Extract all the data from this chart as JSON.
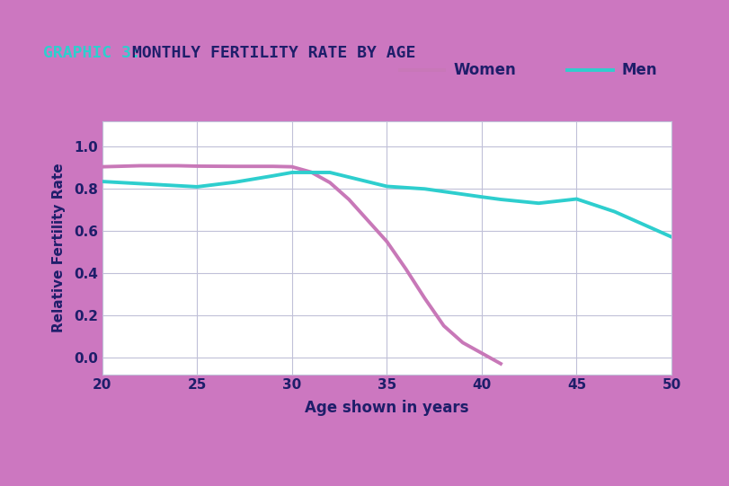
{
  "title_graphic": "GRAPHIC 3:",
  "title_main": " MONTHLY FERTILITY RATE BY AGE",
  "xlabel": "Age shown in years",
  "ylabel": "Relative Fertility Rate",
  "xlim": [
    20,
    50
  ],
  "ylim": [
    -0.08,
    1.12
  ],
  "xticks": [
    20,
    25,
    30,
    35,
    40,
    45,
    50
  ],
  "yticks": [
    0,
    0.2,
    0.4,
    0.6,
    0.8,
    1.0
  ],
  "women_x": [
    20,
    22,
    24,
    25,
    27,
    28,
    29,
    30,
    31,
    32,
    33,
    34,
    35,
    36,
    37,
    38,
    39,
    40,
    41
  ],
  "women_y": [
    0.905,
    0.91,
    0.91,
    0.908,
    0.907,
    0.907,
    0.907,
    0.905,
    0.88,
    0.83,
    0.75,
    0.65,
    0.55,
    0.42,
    0.28,
    0.15,
    0.07,
    0.02,
    -0.03
  ],
  "men_x": [
    20,
    25,
    27,
    29,
    30,
    32,
    35,
    37,
    40,
    41,
    43,
    45,
    47,
    50
  ],
  "men_y": [
    0.835,
    0.81,
    0.832,
    0.862,
    0.878,
    0.878,
    0.812,
    0.8,
    0.762,
    0.75,
    0.732,
    0.752,
    0.692,
    0.572
  ],
  "women_color": "#c878b8",
  "men_color": "#2ecece",
  "bg_outer_top": "#cc77c0",
  "bg_outer_side": "#cc77c0",
  "bg_card": "#ffffff",
  "bg_dark_bottom": "#1e1e5a",
  "title_color_graphic": "#2ecece",
  "title_color_main": "#1e1e6a",
  "axis_label_color": "#1e1e6a",
  "tick_label_color": "#1e1e6a",
  "grid_color": "#c0c0d8",
  "line_width": 2.8,
  "underline_color": "#c878b8",
  "legend_text_color": "#1e1e6a"
}
